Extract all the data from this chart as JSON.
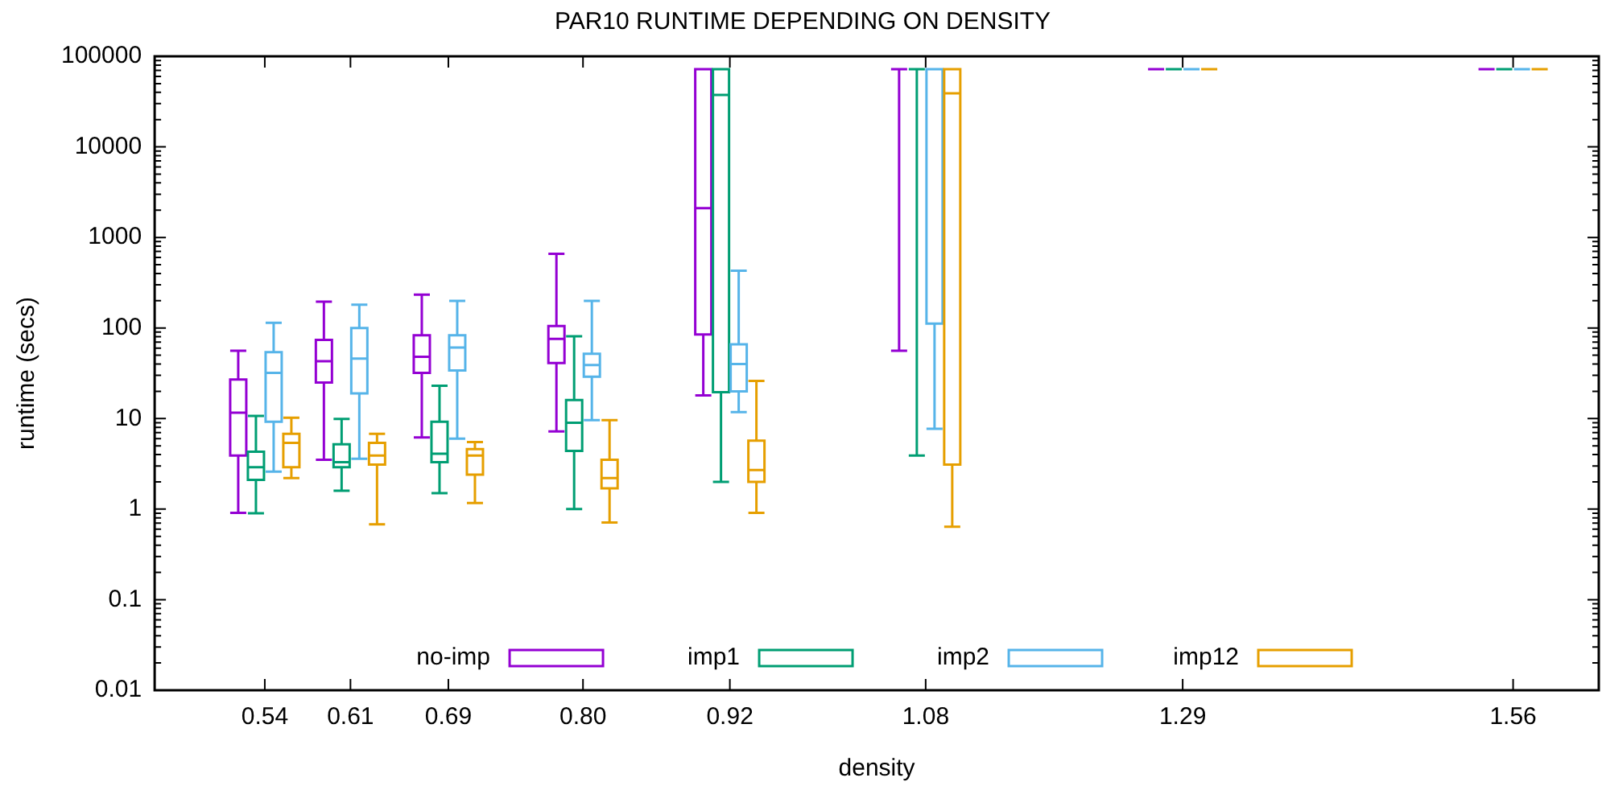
{
  "chart_data": {
    "type": "box",
    "title": "PAR10 RUNTIME DEPENDING ON DENSITY",
    "xlabel": "density",
    "ylabel": "runtime (secs)",
    "x": [
      0.54,
      0.61,
      0.69,
      0.8,
      0.92,
      1.08,
      1.29,
      1.56
    ],
    "xlim": [
      0.45,
      1.63
    ],
    "xticks": [
      0.54,
      0.61,
      0.69,
      {
        "value": 0.8,
        "label": "0.80"
      },
      0.92,
      1.08,
      1.29,
      1.56
    ],
    "ylim": [
      0.01,
      100000
    ],
    "yticks": [
      0.01,
      0.1,
      1,
      10,
      100,
      1000,
      10000,
      100000
    ],
    "log": "y",
    "grid": false,
    "legend": "bottom",
    "series": [
      {
        "name": "no-imp",
        "color": "#9400d3",
        "boxes": [
          {
            "low": 0.91,
            "q1": 3.9,
            "median": 11.6,
            "q3": 27,
            "high": 56
          },
          {
            "low": 3.5,
            "q1": 25,
            "median": 43,
            "q3": 74,
            "high": 195
          },
          {
            "low": 6.2,
            "q1": 32,
            "median": 48,
            "q3": 83,
            "high": 233
          },
          {
            "low": 7.2,
            "q1": 41,
            "median": 76,
            "q3": 105,
            "high": 660
          },
          {
            "low": 18,
            "q1": 85,
            "median": 2100,
            "q3": 72000,
            "high": 72000
          },
          {
            "low": 56,
            "q1": 72000,
            "median": 72000,
            "q3": 72000,
            "high": 72000
          },
          {
            "low": 72000,
            "q1": 72000,
            "median": 72000,
            "q3": 72000,
            "high": 72000
          },
          {
            "low": 72000,
            "q1": 72000,
            "median": 72000,
            "q3": 72000,
            "high": 72000
          }
        ]
      },
      {
        "name": "imp1",
        "color": "#009e73",
        "boxes": [
          {
            "low": 0.9,
            "q1": 2.1,
            "median": 2.9,
            "q3": 4.3,
            "high": 10.7
          },
          {
            "low": 1.6,
            "q1": 2.9,
            "median": 3.3,
            "q3": 5.2,
            "high": 9.9
          },
          {
            "low": 1.5,
            "q1": 3.3,
            "median": 4.1,
            "q3": 9.2,
            "high": 23
          },
          {
            "low": 1,
            "q1": 4.4,
            "median": 9,
            "q3": 16,
            "high": 81
          },
          {
            "low": 2,
            "q1": 19.6,
            "median": 37500,
            "q3": 72000,
            "high": 72000
          },
          {
            "low": 3.9,
            "q1": 72000,
            "median": 72000,
            "q3": 72000,
            "high": 72000
          },
          {
            "low": 72000,
            "q1": 72000,
            "median": 72000,
            "q3": 72000,
            "high": 72000
          },
          {
            "low": 72000,
            "q1": 72000,
            "median": 72000,
            "q3": 72000,
            "high": 72000
          }
        ]
      },
      {
        "name": "imp2",
        "color": "#56b4e9",
        "boxes": [
          {
            "low": 2.6,
            "q1": 9.2,
            "median": 32,
            "q3": 54,
            "high": 114
          },
          {
            "low": 3.6,
            "q1": 19,
            "median": 46,
            "q3": 100,
            "high": 181
          },
          {
            "low": 6,
            "q1": 34,
            "median": 61,
            "q3": 83,
            "high": 199
          },
          {
            "low": 9.6,
            "q1": 29,
            "median": 39,
            "q3": 52,
            "high": 199
          },
          {
            "low": 11.8,
            "q1": 20,
            "median": 40,
            "q3": 66,
            "high": 430
          },
          {
            "low": 7.7,
            "q1": 112,
            "median": 72000,
            "q3": 72000,
            "high": 72000
          },
          {
            "low": 72000,
            "q1": 72000,
            "median": 72000,
            "q3": 72000,
            "high": 72000
          },
          {
            "low": 72000,
            "q1": 72000,
            "median": 72000,
            "q3": 72000,
            "high": 72000
          }
        ]
      },
      {
        "name": "imp12",
        "color": "#e69f00",
        "boxes": [
          {
            "low": 2.2,
            "q1": 2.9,
            "median": 5.4,
            "q3": 6.8,
            "high": 10.2
          },
          {
            "low": 0.68,
            "q1": 3.1,
            "median": 3.9,
            "q3": 5.4,
            "high": 6.8
          },
          {
            "low": 1.17,
            "q1": 2.4,
            "median": 3.9,
            "q3": 4.6,
            "high": 5.5
          },
          {
            "low": 0.71,
            "q1": 1.7,
            "median": 2.2,
            "q3": 3.5,
            "high": 9.6
          },
          {
            "low": 0.91,
            "q1": 2,
            "median": 2.7,
            "q3": 5.7,
            "high": 26
          },
          {
            "low": 0.64,
            "q1": 3.1,
            "median": 39000,
            "q3": 72000,
            "high": 72000
          },
          {
            "low": 72000,
            "q1": 72000,
            "median": 72000,
            "q3": 72000,
            "high": 72000
          },
          {
            "low": 72000,
            "q1": 72000,
            "median": 72000,
            "q3": 72000,
            "high": 72000
          }
        ]
      }
    ]
  }
}
